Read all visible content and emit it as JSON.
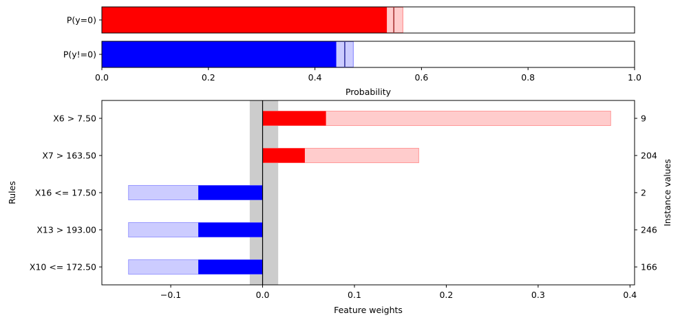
{
  "chart_data": [
    {
      "type": "bar",
      "orientation": "horizontal",
      "categories": [
        "P(y=0)",
        "P(y!=0)"
      ],
      "series": [
        {
          "values": [
            0.535,
            0.44
          ]
        },
        {
          "values": [
            0.565,
            0.472
          ]
        }
      ],
      "markers": [
        0.548,
        0.456
      ],
      "xlabel": "Probability",
      "xlim": [
        0,
        1
      ],
      "xticks": [
        "0.0",
        "0.2",
        "0.4",
        "0.6",
        "0.8",
        "1.0"
      ],
      "xtick_values": [
        0,
        0.2,
        0.4,
        0.6,
        0.8,
        1.0
      ],
      "colors": {
        "p0": "#ff0000",
        "p0_range": "#ffcccc",
        "p1": "#0000ff",
        "p1_range": "#ccccff"
      }
    },
    {
      "type": "bar",
      "orientation": "horizontal",
      "categories": [
        "X6 > 7.50",
        "X7 > 163.50",
        "X16 <= 17.50",
        "X13 > 193.00",
        "X10 <= 172.50"
      ],
      "instance_values": [
        "9",
        "204",
        "2",
        "246",
        "166"
      ],
      "series": [
        {
          "values": [
            0.069,
            0.046,
            -0.07,
            -0.07,
            -0.07
          ]
        },
        {
          "values": [
            0.379,
            0.17,
            -0.146,
            -0.146,
            -0.146
          ]
        }
      ],
      "uncertainty_band": [
        -0.014,
        0.017
      ],
      "xlabel": "Feature weights",
      "ylabel": "Rules",
      "y2label": "Instance values",
      "xlim": [
        -0.175,
        0.405
      ],
      "xticks": [
        "−0.1",
        "0.0",
        "0.1",
        "0.2",
        "0.3",
        "0.4"
      ],
      "xtick_values": [
        -0.1,
        0,
        0.1,
        0.2,
        0.3,
        0.4
      ],
      "colors": {
        "positive": "#ff0000",
        "positive_range": "#ffcccc",
        "negative": "#0000ff",
        "negative_range": "#ccccff",
        "band": "#cccccc"
      }
    }
  ]
}
